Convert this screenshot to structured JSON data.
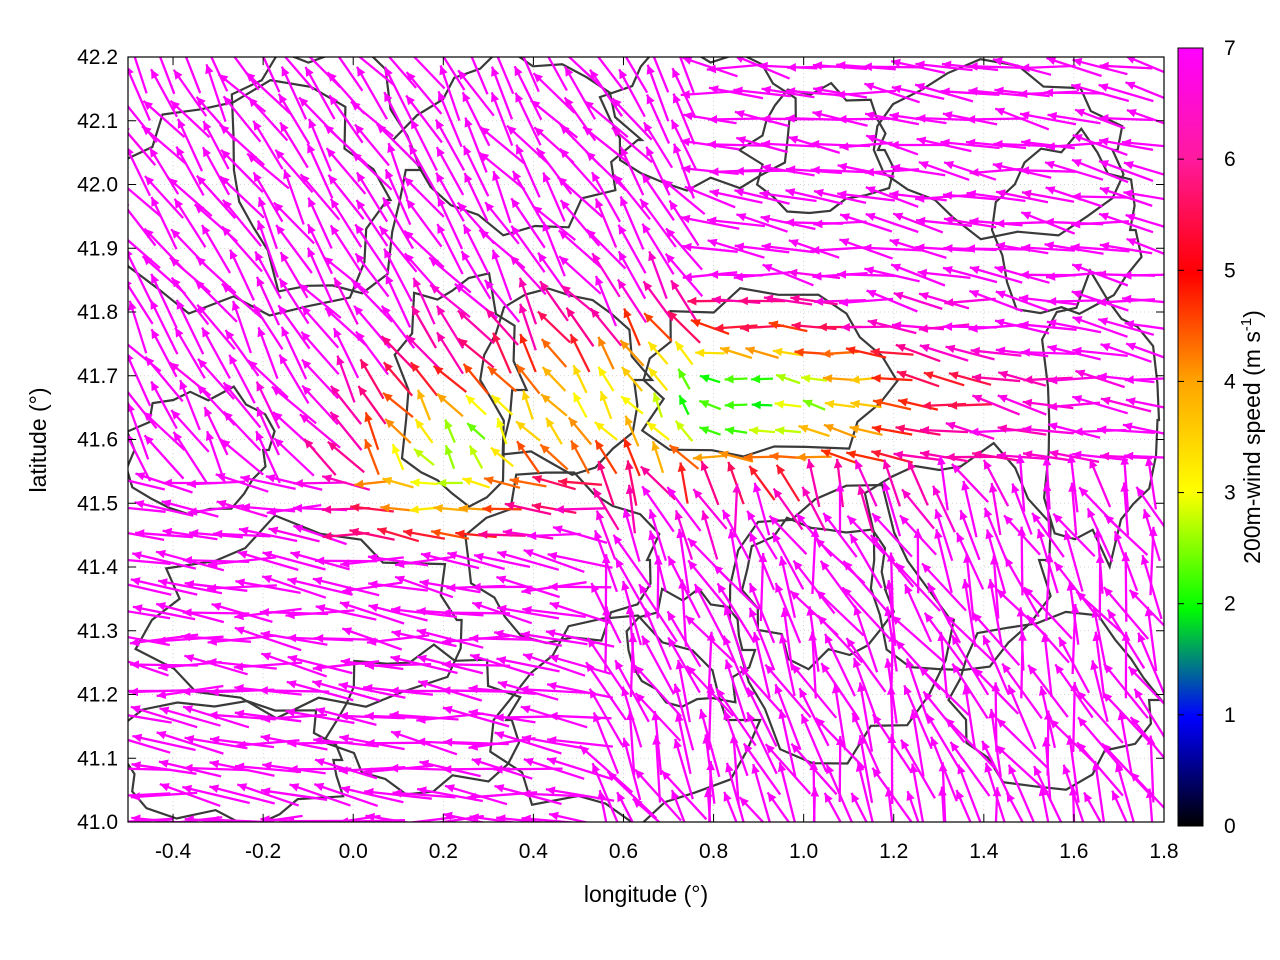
{
  "chart_data": {
    "type": "vector-field",
    "xlabel": "longitude (°)",
    "ylabel": "latitude (°)",
    "xlim": [
      -0.5,
      1.8
    ],
    "ylim": [
      41.0,
      42.2
    ],
    "xticks": [
      "-0.4",
      "-0.2",
      "0.0",
      "0.2",
      "0.4",
      "0.6",
      "0.8",
      "1.0",
      "1.2",
      "1.4",
      "1.6",
      "1.8"
    ],
    "yticks": [
      "41.0",
      "41.1",
      "41.2",
      "41.3",
      "41.4",
      "41.5",
      "41.6",
      "41.7",
      "41.8",
      "41.9",
      "42.0",
      "42.1",
      "42.2"
    ],
    "colorbar": {
      "label_main": "200m-wind speed (m s",
      "label_sup": "-1",
      "label_end": ")",
      "range": [
        0,
        7
      ],
      "ticks": [
        "0",
        "1",
        "2",
        "3",
        "4",
        "5",
        "6",
        "7"
      ],
      "palette": [
        "#000000",
        "#0000ff",
        "#00ff00",
        "#ffff00",
        "#ffa500",
        "#ff0000",
        "#ff00ff"
      ]
    },
    "overlays": [
      "terrain contour lines",
      "wind vectors colored by speed"
    ],
    "grid": true,
    "wind_samples": [
      {
        "lon": -0.3,
        "lat": 41.4,
        "speed": 6.5,
        "direction": "westward"
      },
      {
        "lon": 0.3,
        "lat": 41.7,
        "speed": 3.0,
        "direction": "northward"
      },
      {
        "lon": 0.9,
        "lat": 41.65,
        "speed": 1.5,
        "direction": "variable"
      },
      {
        "lon": 1.5,
        "lat": 41.8,
        "speed": 7.0,
        "direction": "westward"
      },
      {
        "lon": 1.0,
        "lat": 41.2,
        "speed": 7.0,
        "direction": "northward"
      }
    ]
  }
}
